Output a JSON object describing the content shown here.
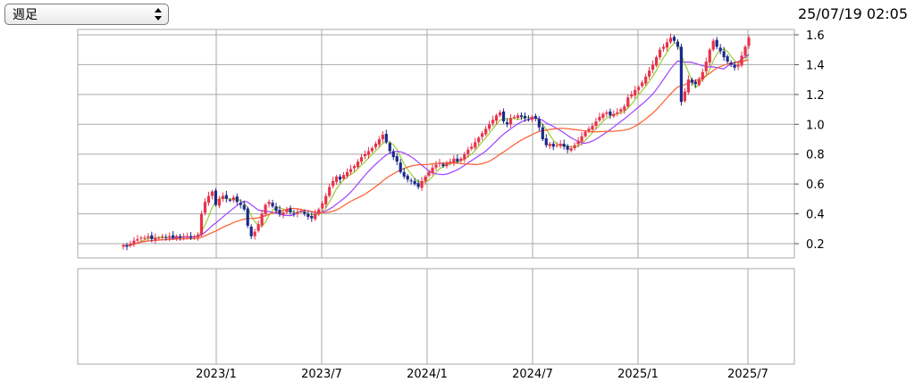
{
  "toolbar": {
    "period_label": "週足",
    "timestamp": "25/07/19 02:05"
  },
  "colors": {
    "up": "#e8334a",
    "down": "#1a2a8a",
    "ma_short": "#9acd32",
    "ma_mid": "#a040ff",
    "ma_long": "#ff5a2a",
    "grid": "#aaaaaa"
  },
  "chart_data": {
    "type": "candlestick",
    "price_axis": {
      "ylim": [
        0.1,
        1.65
      ],
      "ticks": [
        "0.2",
        "0.4",
        "0.6",
        "0.8",
        "1.0",
        "1.2",
        "1.4",
        "1.6"
      ],
      "tick_values": [
        0.2,
        0.4,
        0.6,
        0.8,
        1.0,
        1.2,
        1.4,
        1.6
      ]
    },
    "date_axis": {
      "ticks": [
        "2023/1",
        "2023/7",
        "2024/1",
        "2024/7",
        "2025/1",
        "2025/7"
      ]
    },
    "close_series": [
      0.19,
      0.18,
      0.2,
      0.22,
      0.23,
      0.24,
      0.24,
      0.25,
      0.23,
      0.24,
      0.24,
      0.25,
      0.24,
      0.25,
      0.24,
      0.25,
      0.24,
      0.25,
      0.25,
      0.24,
      0.25,
      0.26,
      0.4,
      0.48,
      0.52,
      0.55,
      0.46,
      0.5,
      0.52,
      0.5,
      0.49,
      0.51,
      0.48,
      0.46,
      0.43,
      0.32,
      0.25,
      0.28,
      0.33,
      0.4,
      0.46,
      0.48,
      0.45,
      0.42,
      0.4,
      0.41,
      0.43,
      0.41,
      0.4,
      0.41,
      0.42,
      0.4,
      0.38,
      0.37,
      0.4,
      0.43,
      0.47,
      0.52,
      0.58,
      0.62,
      0.65,
      0.63,
      0.66,
      0.68,
      0.7,
      0.72,
      0.75,
      0.78,
      0.8,
      0.82,
      0.84,
      0.87,
      0.9,
      0.93,
      0.88,
      0.82,
      0.78,
      0.75,
      0.68,
      0.65,
      0.63,
      0.62,
      0.6,
      0.58,
      0.62,
      0.65,
      0.68,
      0.71,
      0.73,
      0.74,
      0.72,
      0.74,
      0.75,
      0.77,
      0.75,
      0.77,
      0.8,
      0.83,
      0.85,
      0.88,
      0.91,
      0.94,
      0.97,
      1.0,
      1.03,
      1.06,
      1.08,
      1.02,
      1.0,
      1.04,
      1.05,
      1.06,
      1.05,
      1.04,
      1.03,
      1.05,
      1.04,
      0.98,
      0.9,
      0.86,
      0.87,
      0.85,
      0.86,
      0.87,
      0.85,
      0.83,
      0.84,
      0.86,
      0.89,
      0.92,
      0.95,
      0.97,
      0.99,
      1.02,
      1.05,
      1.07,
      1.08,
      1.06,
      1.07,
      1.08,
      1.1,
      1.12,
      1.18,
      1.2,
      1.23,
      1.25,
      1.28,
      1.32,
      1.36,
      1.4,
      1.45,
      1.5,
      1.52,
      1.55,
      1.58,
      1.56,
      1.52,
      1.15,
      1.22,
      1.3,
      1.28,
      1.27,
      1.3,
      1.35,
      1.42,
      1.5,
      1.56,
      1.52,
      1.49,
      1.45,
      1.42,
      1.4,
      1.38,
      1.4,
      1.46,
      1.52,
      1.58
    ]
  }
}
